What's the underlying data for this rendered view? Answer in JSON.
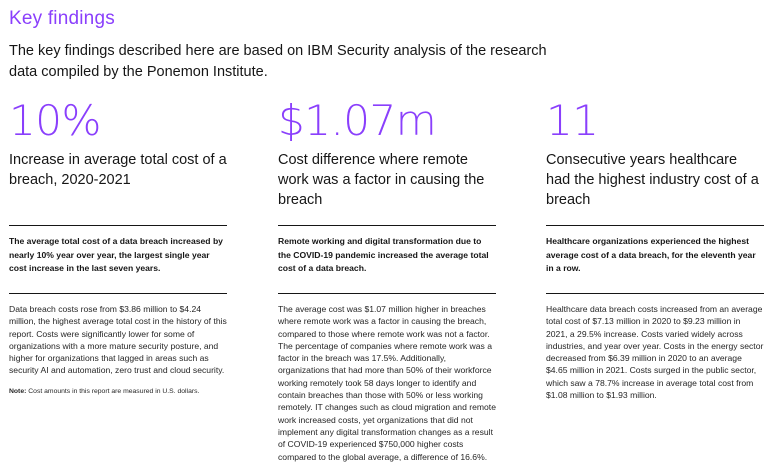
{
  "header": {
    "title": "Key findings",
    "intro": "The key findings described here are based on IBM Security analysis of the research data compiled by the Ponemon Institute."
  },
  "columns": [
    {
      "stat": "10%",
      "subtitle": "Increase in average total cost of a breach, 2020-2021",
      "summary": "The average total cost of a data breach increased by nearly 10% year over year, the largest single year cost increase in the last seven years.",
      "body": "Data breach costs rose from $3.86 million to $4.24 million, the highest average total cost in the history of this report. Costs were significantly lower for some of organizations with a more mature security posture, and higher for organizations that lagged in areas such as security AI and automation, zero trust and cloud security.",
      "note_label": "Note:",
      "note_text": "Cost amounts in this report are measured in U.S. dollars."
    },
    {
      "stat": "$1.07m",
      "subtitle": "Cost difference where remote work was a factor in causing the breach",
      "summary": "Remote working and digital transformation due to the COVID-19 pandemic increased the average total cost of a data breach.",
      "body": "The average cost was $1.07 million higher in breaches where remote work was a factor in causing the breach, compared to those where remote work was not a factor. The percentage of companies where remote work was a factor in the breach was 17.5%. Additionally, organizations that had more than 50% of their workforce working remotely took 58 days longer to identify and contain breaches than those with 50% or less working remotely. IT changes such as cloud migration and remote work increased costs, yet organizations that did not implement any digital transformation changes as a result of COVID-19 experienced $750,000 higher costs compared to the global average, a difference of 16.6%."
    },
    {
      "stat": "11",
      "subtitle": "Consecutive years healthcare had the highest industry cost of a breach",
      "summary": "Healthcare organizations experienced the highest average cost of a data breach, for the eleventh year in a row.",
      "body": "Healthcare data breach costs increased from an average total cost of $7.13 million in 2020 to $9.23 million in 2021, a 29.5% increase. Costs varied widely across industries, and year over year. Costs in the energy sector decreased from $6.39 million in 2020 to an average $4.65 million in 2021. Costs surged in the public sector, which saw a 78.7% increase in average total cost from $1.08 million to $1.93 million."
    }
  ]
}
